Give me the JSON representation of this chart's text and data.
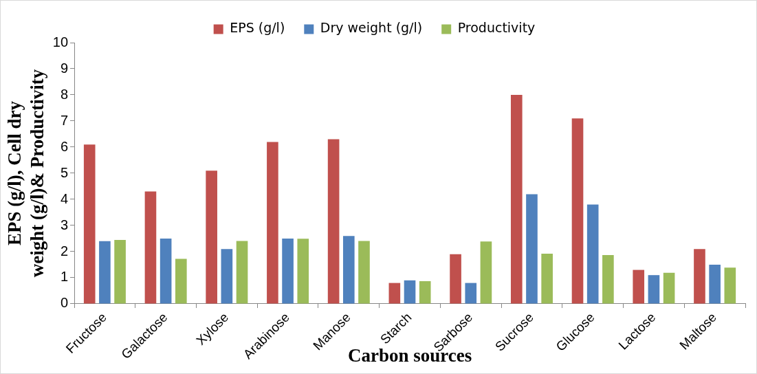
{
  "chart_data": {
    "type": "bar",
    "xlabel": "Carbon sources",
    "ylabel": "EPS (g/l), Cell dry weight (g/l)& Productivity",
    "categories": [
      "Fructose",
      "Galactose",
      "Xylose",
      "Arabinose",
      "Manose",
      "Starch",
      "Sarbose",
      "Sucrose",
      "Glucose",
      "Lactose",
      "Maltose"
    ],
    "series": [
      {
        "name": "EPS (g/l)",
        "color": "#c0504d",
        "values": [
          6.1,
          4.3,
          5.1,
          6.2,
          6.3,
          0.8,
          1.9,
          8.0,
          7.1,
          1.3,
          2.1
        ]
      },
      {
        "name": "Dry weight (g/l)",
        "color": "#4f81bd",
        "values": [
          2.4,
          2.5,
          2.1,
          2.5,
          2.6,
          0.9,
          0.8,
          4.2,
          3.8,
          1.1,
          1.5
        ]
      },
      {
        "name": "Productivity",
        "color": "#9bbb59",
        "values": [
          2.45,
          1.72,
          2.41,
          2.49,
          2.41,
          0.87,
          2.39,
          1.92,
          1.87,
          1.19,
          1.39
        ]
      }
    ],
    "ylim": [
      0,
      10
    ],
    "yticks": [
      0,
      1,
      2,
      3,
      4,
      5,
      6,
      7,
      8,
      9,
      10
    ],
    "grid": false,
    "legend": "top"
  }
}
